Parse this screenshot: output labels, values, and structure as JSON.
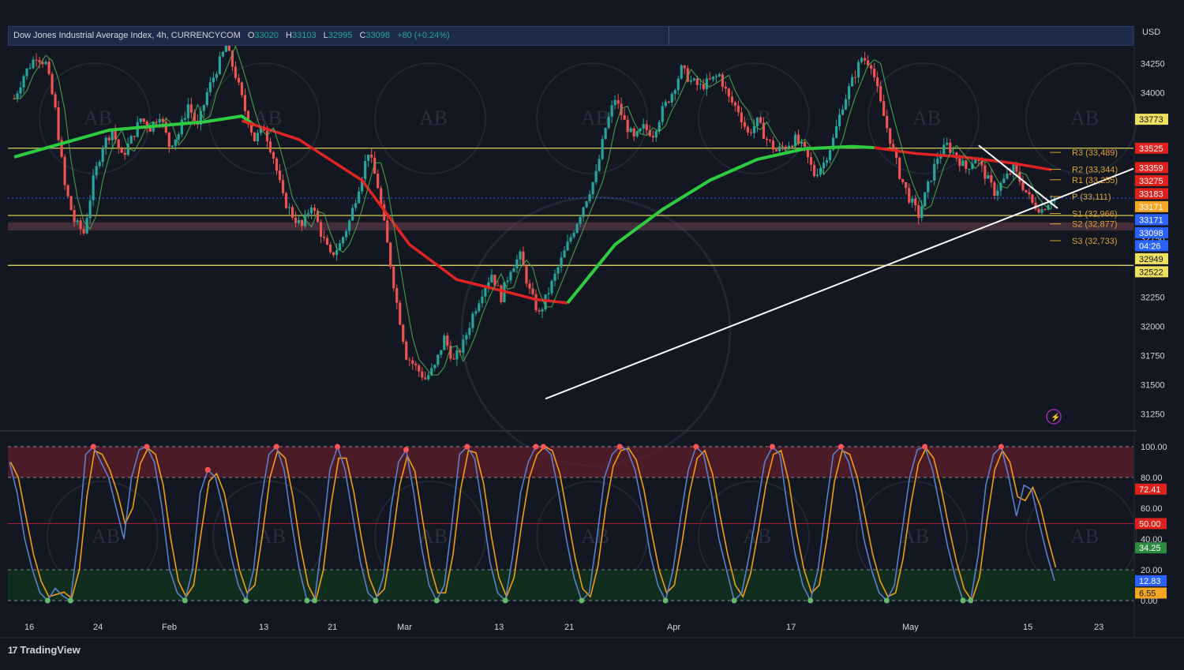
{
  "header": {
    "symbol": "Dow Jones Industrial Average Index, 4h, CURRENCYCOM",
    "o_label": "O",
    "o_value": "33020",
    "h_label": "H",
    "h_value": "33103",
    "l_label": "L",
    "l_value": "32995",
    "c_label": "C",
    "c_value": "33098",
    "change": "+80 (+0.24%)"
  },
  "currency": "USD",
  "branding": "TradingView",
  "colors": {
    "up": "#26a69a",
    "down": "#ef5350",
    "ma_green": "#2ecc40",
    "ma_red": "#e02424",
    "level": "#f0e060",
    "trend": "#ffffff",
    "stoch_k": "#5b7ec9",
    "stoch_d": "#f39c12"
  },
  "chart_data": [
    {
      "type": "candlestick",
      "title": "Dow Jones Industrial Average Index, 4h, CURRENCYCOM",
      "x_ticks": [
        "16",
        "24",
        "Feb",
        "13",
        "21",
        "Mar",
        "13",
        "21",
        "Apr",
        "17",
        "May",
        "15",
        "23"
      ],
      "y_ticks": [
        "34250",
        "34000",
        "32750",
        "32250",
        "32000",
        "31750",
        "31500",
        "31250"
      ],
      "ylim": [
        31150,
        34450
      ],
      "price_badges": [
        {
          "text": "33773",
          "value": 33773,
          "kind": "level"
        },
        {
          "text": "33525",
          "value": 33525,
          "kind": "red"
        },
        {
          "text": "33359",
          "value": 33359,
          "kind": "red"
        },
        {
          "text": "33275",
          "value": 33275,
          "kind": "red"
        },
        {
          "text": "33183",
          "value": 33183,
          "kind": "red"
        },
        {
          "text": "33171",
          "value": 33171,
          "kind": "orange"
        },
        {
          "text": "33171",
          "value": 33171,
          "kind": "blue"
        },
        {
          "text": "33098",
          "value": 33098,
          "kind": "blue"
        },
        {
          "text": "04:26",
          "value": 33098,
          "kind": "blue"
        },
        {
          "text": "32949",
          "value": 32949,
          "kind": "level"
        },
        {
          "text": "32522",
          "value": 32522,
          "kind": "level"
        }
      ],
      "pivots": [
        {
          "label": "R3 (33,489)",
          "value": 33489
        },
        {
          "label": "R2 (33,344)",
          "value": 33344
        },
        {
          "label": "R1 (33,255)",
          "value": 33255
        },
        {
          "label": "P (33,111)",
          "value": 33111
        },
        {
          "label": "S1 (32,966)",
          "value": 32966
        },
        {
          "label": "S2 (32,877)",
          "value": 32877
        },
        {
          "label": "S3 (32,733)",
          "value": 32733
        }
      ],
      "horizontal_levels": [
        33525,
        32949,
        32522
      ],
      "zone": [
        32820,
        32890
      ],
      "price_path": [
        [
          0,
          33950
        ],
        [
          3,
          34150
        ],
        [
          7,
          34320
        ],
        [
          10,
          34250
        ],
        [
          13,
          33850
        ],
        [
          16,
          33200
        ],
        [
          19,
          32900
        ],
        [
          22,
          32800
        ],
        [
          25,
          33250
        ],
        [
          28,
          33550
        ],
        [
          31,
          33680
        ],
        [
          34,
          33450
        ],
        [
          37,
          33600
        ],
        [
          40,
          33780
        ],
        [
          43,
          33700
        ],
        [
          46,
          33820
        ],
        [
          49,
          33550
        ],
        [
          52,
          33650
        ],
        [
          55,
          33900
        ],
        [
          58,
          33700
        ],
        [
          61,
          34000
        ],
        [
          64,
          34200
        ],
        [
          67,
          34400
        ],
        [
          70,
          34150
        ],
        [
          73,
          33850
        ],
        [
          76,
          33600
        ],
        [
          79,
          33700
        ],
        [
          82,
          33450
        ],
        [
          85,
          33100
        ],
        [
          88,
          32950
        ],
        [
          91,
          32850
        ],
        [
          94,
          33050
        ],
        [
          97,
          32800
        ],
        [
          100,
          32600
        ],
        [
          103,
          32700
        ],
        [
          106,
          32900
        ],
        [
          109,
          33200
        ],
        [
          112,
          33500
        ],
        [
          115,
          33200
        ],
        [
          118,
          32700
        ],
        [
          121,
          32200
        ],
        [
          124,
          31750
        ],
        [
          127,
          31650
        ],
        [
          130,
          31550
        ],
        [
          133,
          31650
        ],
        [
          136,
          31900
        ],
        [
          139,
          31700
        ],
        [
          142,
          31850
        ],
        [
          145,
          32100
        ],
        [
          148,
          32300
        ],
        [
          151,
          32450
        ],
        [
          154,
          32250
        ],
        [
          157,
          32500
        ],
        [
          160,
          32600
        ],
        [
          163,
          32300
        ],
        [
          166,
          32100
        ],
        [
          169,
          32300
        ],
        [
          172,
          32500
        ],
        [
          175,
          32700
        ],
        [
          178,
          32900
        ],
        [
          181,
          33100
        ],
        [
          184,
          33300
        ],
        [
          187,
          33700
        ],
        [
          190,
          33950
        ],
        [
          193,
          33750
        ],
        [
          196,
          33600
        ],
        [
          199,
          33700
        ],
        [
          202,
          33650
        ],
        [
          205,
          33850
        ],
        [
          208,
          34000
        ],
        [
          211,
          34200
        ],
        [
          214,
          34100
        ],
        [
          217,
          34050
        ],
        [
          220,
          34100
        ],
        [
          223,
          34150
        ],
        [
          226,
          33950
        ],
        [
          229,
          33850
        ],
        [
          232,
          33650
        ],
        [
          235,
          33750
        ],
        [
          238,
          33600
        ],
        [
          241,
          33500
        ],
        [
          244,
          33550
        ],
        [
          247,
          33600
        ],
        [
          250,
          33500
        ],
        [
          253,
          33300
        ],
        [
          256,
          33400
        ],
        [
          259,
          33600
        ],
        [
          262,
          33900
        ],
        [
          265,
          34100
        ],
        [
          268,
          34300
        ],
        [
          271,
          34250
        ],
        [
          274,
          33900
        ],
        [
          277,
          33600
        ],
        [
          280,
          33300
        ],
        [
          283,
          33100
        ],
        [
          286,
          32950
        ],
        [
          289,
          33200
        ],
        [
          292,
          33450
        ],
        [
          295,
          33550
        ],
        [
          298,
          33450
        ],
        [
          301,
          33350
        ],
        [
          304,
          33450
        ],
        [
          307,
          33300
        ],
        [
          310,
          33150
        ],
        [
          313,
          33250
        ],
        [
          316,
          33350
        ],
        [
          319,
          33200
        ],
        [
          322,
          33050
        ],
        [
          325,
          33000
        ],
        [
          328,
          33098
        ]
      ],
      "ema_fast_green": [
        [
          0,
          33450
        ],
        [
          30,
          33680
        ],
        [
          60,
          33750
        ],
        [
          72,
          33800
        ],
        [
          76,
          33720
        ]
      ],
      "ema_red": [
        [
          72,
          33760
        ],
        [
          90,
          33600
        ],
        [
          110,
          33250
        ],
        [
          125,
          32700
        ],
        [
          140,
          32400
        ],
        [
          155,
          32300
        ],
        [
          165,
          32230
        ],
        [
          175,
          32200
        ]
      ],
      "ema_slow_green": [
        [
          175,
          32200
        ],
        [
          190,
          32700
        ],
        [
          205,
          33000
        ],
        [
          220,
          33250
        ],
        [
          235,
          33430
        ],
        [
          250,
          33520
        ],
        [
          265,
          33540
        ],
        [
          272,
          33530
        ]
      ],
      "ema_red_late": [
        [
          272,
          33530
        ],
        [
          285,
          33480
        ],
        [
          300,
          33450
        ],
        [
          315,
          33400
        ],
        [
          328,
          33340
        ]
      ],
      "trendlines": [
        {
          "from": [
            168,
            31380
          ],
          "to": [
            355,
            33350
          ]
        },
        {
          "from": [
            305,
            33550
          ],
          "to": [
            330,
            33010
          ]
        }
      ]
    },
    {
      "type": "line",
      "title": "Stochastic RSI",
      "y_ticks": [
        "100.00",
        "80.00",
        "60.00",
        "40.00",
        "20.00",
        "0.00"
      ],
      "ylim": [
        0,
        100
      ],
      "bands": [
        20,
        50,
        80
      ],
      "badges": [
        {
          "text": "72.41",
          "value": 72.41,
          "kind": "red"
        },
        {
          "text": "50.00",
          "value": 50.0,
          "kind": "red"
        },
        {
          "text": "34.25",
          "value": 34.25,
          "kind": "green"
        },
        {
          "text": "12.83",
          "value": 12.83,
          "kind": "blue"
        },
        {
          "text": "6.55",
          "value": 6.55,
          "kind": "orange"
        }
      ],
      "k_values": [
        90,
        70,
        40,
        20,
        5,
        0,
        8,
        3,
        0,
        40,
        95,
        100,
        90,
        80,
        60,
        40,
        80,
        98,
        100,
        90,
        60,
        20,
        5,
        0,
        20,
        70,
        85,
        80,
        60,
        30,
        10,
        0,
        20,
        65,
        95,
        100,
        85,
        50,
        20,
        0,
        0,
        40,
        85,
        100,
        85,
        55,
        25,
        5,
        0,
        15,
        60,
        90,
        98,
        70,
        35,
        10,
        0,
        10,
        50,
        95,
        100,
        92,
        60,
        25,
        5,
        0,
        30,
        70,
        90,
        100,
        100,
        95,
        70,
        40,
        15,
        0,
        5,
        40,
        80,
        95,
        100,
        98,
        85,
        60,
        30,
        10,
        0,
        20,
        55,
        85,
        100,
        95,
        70,
        40,
        20,
        0,
        5,
        30,
        60,
        90,
        100,
        95,
        60,
        30,
        10,
        0,
        20,
        60,
        95,
        100,
        90,
        70,
        40,
        20,
        5,
        0,
        10,
        45,
        80,
        98,
        100,
        85,
        60,
        35,
        15,
        0,
        0,
        30,
        75,
        95,
        100,
        80,
        55,
        75,
        72,
        50,
        30,
        12.83
      ]
    }
  ]
}
